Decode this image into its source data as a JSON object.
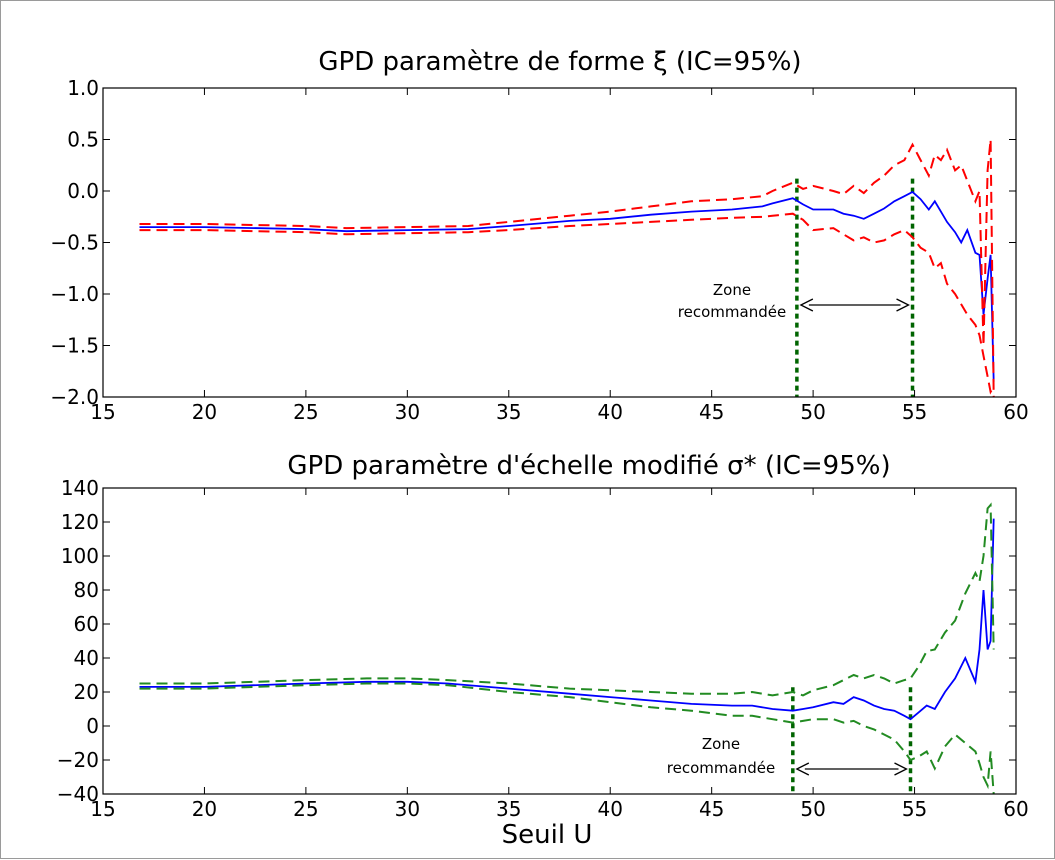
{
  "chart_data": [
    {
      "type": "line",
      "title": "GPD paramètre de forme ξ  (IC=95%)",
      "xlabel": "",
      "ylabel": "",
      "xlim": [
        15,
        60
      ],
      "ylim": [
        -2.0,
        1.0
      ],
      "xticks": [
        "15",
        "20",
        "25",
        "30",
        "35",
        "40",
        "45",
        "50",
        "55",
        "60"
      ],
      "yticks": [
        "1.0",
        "0.5",
        "0.0",
        "−0.5",
        "−1.0",
        "−1.5",
        "−2.0"
      ],
      "grid": false,
      "annotation": {
        "line1": "Zone",
        "line2": "recommandée",
        "x_start": 49.2,
        "x_end": 54.9
      },
      "zone_lines": [
        49.2,
        54.9
      ],
      "colors": {
        "estimate": "#0000ff",
        "ci": "#ff0000",
        "zone": "#006400"
      },
      "series": [
        {
          "style": "estimate",
          "x": [
            16.8,
            20,
            25,
            27,
            30,
            33,
            35,
            38,
            40,
            42,
            44,
            46,
            47.5,
            48,
            49,
            49.5,
            50,
            51,
            51.5,
            52,
            52.5,
            53,
            53.5,
            54,
            54.5,
            54.9,
            55.3,
            55.7,
            56,
            56.3,
            56.6,
            57,
            57.3,
            57.6,
            58,
            58.2,
            58.4,
            58.6,
            58.75,
            58.9
          ],
          "y": [
            -0.35,
            -0.35,
            -0.37,
            -0.39,
            -0.38,
            -0.37,
            -0.34,
            -0.29,
            -0.27,
            -0.23,
            -0.2,
            -0.18,
            -0.15,
            -0.12,
            -0.07,
            -0.13,
            -0.18,
            -0.18,
            -0.22,
            -0.24,
            -0.27,
            -0.22,
            -0.17,
            -0.1,
            -0.05,
            -0.01,
            -0.08,
            -0.18,
            -0.1,
            -0.2,
            -0.3,
            -0.4,
            -0.5,
            -0.38,
            -0.6,
            -0.62,
            -1.2,
            -0.85,
            -0.62,
            -1.85
          ]
        },
        {
          "style": "ci",
          "x": [
            16.8,
            20,
            25,
            27,
            30,
            33,
            35,
            38,
            40,
            42,
            44,
            46,
            47.5,
            48,
            49,
            49.5,
            50,
            51,
            51.5,
            52,
            52.5,
            53,
            53.5,
            54,
            54.5,
            54.9,
            55.3,
            55.7,
            56,
            56.3,
            56.6,
            57,
            57.3,
            57.6,
            58,
            58.2,
            58.4,
            58.6,
            58.75,
            58.9
          ],
          "y": [
            -0.32,
            -0.32,
            -0.34,
            -0.36,
            -0.35,
            -0.34,
            -0.3,
            -0.24,
            -0.2,
            -0.15,
            -0.1,
            -0.08,
            -0.05,
            0.0,
            0.08,
            0.02,
            0.05,
            0.0,
            -0.03,
            0.05,
            -0.02,
            0.08,
            0.15,
            0.25,
            0.3,
            0.45,
            0.3,
            0.15,
            0.35,
            0.3,
            0.4,
            0.2,
            0.25,
            0.1,
            -0.1,
            0.0,
            -1.5,
            0.2,
            0.5,
            -2.0
          ]
        },
        {
          "style": "ci",
          "x": [
            16.8,
            20,
            25,
            27,
            30,
            33,
            35,
            38,
            40,
            42,
            44,
            46,
            47.5,
            48,
            49,
            49.5,
            50,
            51,
            51.5,
            52,
            52.5,
            53,
            53.5,
            54,
            54.5,
            54.9,
            55.3,
            55.7,
            56,
            56.3,
            56.6,
            57,
            57.3,
            57.6,
            58,
            58.2,
            58.4,
            58.6,
            58.75,
            58.9
          ],
          "y": [
            -0.38,
            -0.38,
            -0.4,
            -0.42,
            -0.41,
            -0.4,
            -0.38,
            -0.34,
            -0.32,
            -0.3,
            -0.28,
            -0.26,
            -0.25,
            -0.24,
            -0.22,
            -0.28,
            -0.38,
            -0.36,
            -0.42,
            -0.48,
            -0.45,
            -0.5,
            -0.48,
            -0.42,
            -0.38,
            -0.45,
            -0.55,
            -0.6,
            -0.75,
            -0.7,
            -0.9,
            -1.0,
            -1.1,
            -1.2,
            -1.3,
            -1.4,
            -1.6,
            -1.8,
            -1.95,
            -1.9
          ]
        }
      ]
    },
    {
      "type": "line",
      "title": "GPD paramètre d'échelle modifié σ* (IC=95%)",
      "xlabel": "Seuil U",
      "ylabel": "",
      "xlim": [
        15,
        60
      ],
      "ylim": [
        -40,
        140
      ],
      "xticks": [
        "15",
        "20",
        "25",
        "30",
        "35",
        "40",
        "45",
        "50",
        "55",
        "60"
      ],
      "yticks": [
        "140",
        "120",
        "100",
        "80",
        "60",
        "40",
        "20",
        "0",
        "−20",
        "−40"
      ],
      "grid": false,
      "annotation": {
        "line1": "Zone",
        "line2": "recommandée",
        "x_start": 49.0,
        "x_end": 54.8
      },
      "zone_lines": [
        49.0,
        54.8
      ],
      "colors": {
        "estimate": "#0000ff",
        "ci": "#228b22",
        "zone": "#006400"
      },
      "series": [
        {
          "style": "estimate",
          "x": [
            16.8,
            20,
            25,
            28,
            30,
            32,
            35,
            38,
            40,
            42,
            44,
            46,
            47,
            48,
            49,
            49.5,
            50,
            51,
            51.5,
            52,
            52.5,
            53,
            53.5,
            54,
            54.5,
            54.8,
            55.2,
            55.6,
            56,
            56.5,
            57,
            57.5,
            58,
            58.2,
            58.4,
            58.6,
            58.75,
            58.9
          ],
          "y": [
            23,
            23,
            25,
            26,
            26,
            25,
            22,
            19,
            17,
            15,
            13,
            12,
            12,
            10,
            9,
            10,
            11,
            14,
            13,
            17,
            15,
            12,
            10,
            9,
            6,
            4,
            8,
            12,
            10,
            20,
            28,
            40,
            26,
            45,
            80,
            45,
            50,
            122
          ]
        },
        {
          "style": "ci",
          "x": [
            16.8,
            20,
            25,
            28,
            30,
            32,
            35,
            38,
            40,
            42,
            44,
            46,
            47,
            48,
            49,
            49.5,
            50,
            51,
            51.5,
            52,
            52.5,
            53,
            53.5,
            54,
            54.5,
            54.8,
            55.2,
            55.6,
            56,
            56.5,
            57,
            57.5,
            58,
            58.2,
            58.4,
            58.6,
            58.75,
            58.9
          ],
          "y": [
            25,
            25,
            27,
            28,
            28,
            27,
            25,
            22,
            21,
            20,
            19,
            19,
            20,
            18,
            20,
            18,
            21,
            24,
            27,
            30,
            28,
            30,
            28,
            25,
            27,
            28,
            35,
            44,
            45,
            55,
            62,
            78,
            90,
            85,
            100,
            128,
            130,
            45
          ]
        },
        {
          "style": "ci",
          "x": [
            16.8,
            20,
            25,
            28,
            30,
            32,
            35,
            38,
            40,
            42,
            44,
            46,
            47,
            48,
            49,
            49.5,
            50,
            51,
            51.5,
            52,
            52.5,
            53,
            53.5,
            54,
            54.5,
            54.8,
            55.2,
            55.6,
            56,
            56.5,
            57,
            57.5,
            58,
            58.2,
            58.4,
            58.6,
            58.75,
            58.9
          ],
          "y": [
            22,
            22,
            24,
            25,
            25,
            24,
            20,
            17,
            14,
            11,
            9,
            6,
            6,
            4,
            2,
            3,
            4,
            4,
            2,
            3,
            0,
            -2,
            -5,
            -8,
            -15,
            -20,
            -18,
            -15,
            -25,
            -12,
            -5,
            -10,
            -15,
            -22,
            -30,
            -35,
            -15,
            -40
          ]
        }
      ]
    }
  ]
}
